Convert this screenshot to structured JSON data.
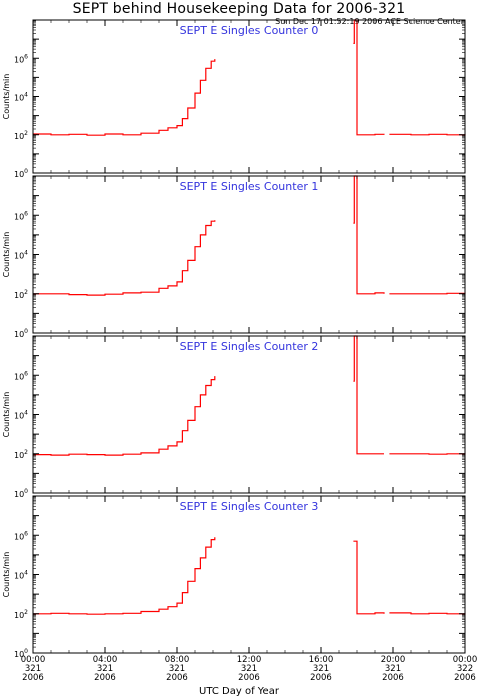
{
  "title": "SEPT behind Housekeeping Data for 2006-321",
  "timestamp": "Sun Dec 17 01:52:19 2006 ACE Science Center",
  "xlabel": "UTC Day of Year",
  "colors": {
    "series": "#ff0000",
    "panel_title": "#3333dd",
    "axes": "#000000"
  },
  "x_ticks": [
    {
      "time": "00:00",
      "doy": "321",
      "year": "2006"
    },
    {
      "time": "04:00",
      "doy": "321",
      "year": "2006"
    },
    {
      "time": "08:00",
      "doy": "321",
      "year": "2006"
    },
    {
      "time": "12:00",
      "doy": "321",
      "year": "2006"
    },
    {
      "time": "16:00",
      "doy": "321",
      "year": "2006"
    },
    {
      "time": "20:00",
      "doy": "321",
      "year": "2006"
    },
    {
      "time": "00:00",
      "doy": "322",
      "year": "2006"
    }
  ],
  "chart_data": [
    {
      "type": "line",
      "title": "SEPT E Singles Counter 0",
      "ylabel": "Counts/min",
      "yscale": "log",
      "ylim": [
        1,
        100000000
      ],
      "y_ticks": [
        "10^0",
        "10^2",
        "10^4",
        "10^6"
      ],
      "xlim": [
        0,
        24
      ],
      "series": [
        {
          "color": "#ff0000",
          "segments": [
            [
              [
                0,
                110
              ],
              [
                1,
                100
              ],
              [
                2,
                105
              ],
              [
                3,
                95
              ],
              [
                4,
                110
              ],
              [
                5,
                100
              ],
              [
                6,
                120
              ],
              [
                7,
                170
              ],
              [
                7.5,
                230
              ],
              [
                8,
                300
              ],
              [
                8.3,
                700
              ],
              [
                8.6,
                2500
              ],
              [
                9,
                15000
              ],
              [
                9.3,
                70000
              ],
              [
                9.6,
                300000
              ],
              [
                9.9,
                700000
              ],
              [
                10.1,
                900000
              ]
            ],
            [
              [
                17.8,
                6000000
              ],
              [
                17.85,
                200000000
              ],
              [
                17.95,
                200000000
              ],
              [
                18,
                100
              ],
              [
                19,
                105
              ],
              [
                19.5,
                100
              ]
            ],
            [
              [
                19.8,
                105
              ],
              [
                21,
                100
              ],
              [
                22,
                105
              ],
              [
                23,
                100
              ],
              [
                24,
                110
              ]
            ]
          ]
        }
      ]
    },
    {
      "type": "line",
      "title": "SEPT E Singles Counter 1",
      "ylabel": "Counts/min",
      "yscale": "log",
      "ylim": [
        1,
        100000000
      ],
      "y_ticks": [
        "10^0",
        "10^2",
        "10^4",
        "10^6"
      ],
      "xlim": [
        0,
        24
      ],
      "series": [
        {
          "color": "#ff0000",
          "segments": [
            [
              [
                0,
                100
              ],
              [
                1,
                100
              ],
              [
                2,
                90
              ],
              [
                3,
                85
              ],
              [
                4,
                95
              ],
              [
                5,
                110
              ],
              [
                6,
                120
              ],
              [
                7,
                190
              ],
              [
                7.5,
                250
              ],
              [
                8,
                400
              ],
              [
                8.3,
                1500
              ],
              [
                8.6,
                5000
              ],
              [
                9,
                25000
              ],
              [
                9.3,
                100000
              ],
              [
                9.6,
                300000
              ],
              [
                9.9,
                500000
              ],
              [
                10.1,
                550000
              ]
            ],
            [
              [
                17.8,
                400000
              ],
              [
                17.85,
                100000000
              ],
              [
                17.95,
                100000000
              ],
              [
                18,
                100
              ],
              [
                19,
                110
              ],
              [
                19.5,
                100
              ]
            ],
            [
              [
                19.8,
                100
              ],
              [
                21,
                100
              ],
              [
                22,
                100
              ],
              [
                23,
                105
              ],
              [
                24,
                100
              ]
            ]
          ]
        }
      ]
    },
    {
      "type": "line",
      "title": "SEPT E Singles Counter 2",
      "ylabel": "Counts/min",
      "yscale": "log",
      "ylim": [
        1,
        100000000
      ],
      "y_ticks": [
        "10^0",
        "10^2",
        "10^4",
        "10^6"
      ],
      "xlim": [
        0,
        24
      ],
      "series": [
        {
          "color": "#ff0000",
          "segments": [
            [
              [
                0,
                90
              ],
              [
                1,
                85
              ],
              [
                2,
                95
              ],
              [
                3,
                90
              ],
              [
                4,
                85
              ],
              [
                5,
                95
              ],
              [
                6,
                110
              ],
              [
                7,
                170
              ],
              [
                7.5,
                250
              ],
              [
                8,
                400
              ],
              [
                8.3,
                1500
              ],
              [
                8.6,
                5000
              ],
              [
                9,
                25000
              ],
              [
                9.3,
                100000
              ],
              [
                9.6,
                300000
              ],
              [
                9.9,
                600000
              ],
              [
                10.1,
                900000
              ]
            ],
            [
              [
                17.8,
                500000
              ],
              [
                17.85,
                100000000
              ],
              [
                17.95,
                100000000
              ],
              [
                18,
                100
              ],
              [
                19,
                100
              ],
              [
                19.5,
                100
              ]
            ],
            [
              [
                19.8,
                100
              ],
              [
                21,
                100
              ],
              [
                22,
                95
              ],
              [
                23,
                100
              ],
              [
                24,
                95
              ]
            ]
          ]
        }
      ]
    },
    {
      "type": "line",
      "title": "SEPT E Singles Counter 3",
      "ylabel": "Counts/min",
      "yscale": "log",
      "ylim": [
        1,
        100000000
      ],
      "y_ticks": [
        "10^0",
        "10^2",
        "10^4",
        "10^6"
      ],
      "xlim": [
        0,
        24
      ],
      "series": [
        {
          "color": "#ff0000",
          "segments": [
            [
              [
                0,
                100
              ],
              [
                1,
                105
              ],
              [
                2,
                100
              ],
              [
                3,
                95
              ],
              [
                4,
                100
              ],
              [
                5,
                105
              ],
              [
                6,
                130
              ],
              [
                7,
                170
              ],
              [
                7.5,
                230
              ],
              [
                8,
                350
              ],
              [
                8.3,
                1200
              ],
              [
                8.6,
                4500
              ],
              [
                9,
                20000
              ],
              [
                9.3,
                70000
              ],
              [
                9.6,
                250000
              ],
              [
                9.9,
                600000
              ],
              [
                10.1,
                800000
              ]
            ],
            [
              [
                17.8,
                500000
              ],
              [
                17.85,
                500000
              ],
              [
                17.95,
                500000
              ],
              [
                18,
                100
              ],
              [
                19,
                110
              ],
              [
                19.5,
                100
              ]
            ],
            [
              [
                19.8,
                110
              ],
              [
                21,
                100
              ],
              [
                22,
                105
              ],
              [
                23,
                100
              ],
              [
                24,
                105
              ]
            ]
          ]
        }
      ]
    }
  ]
}
